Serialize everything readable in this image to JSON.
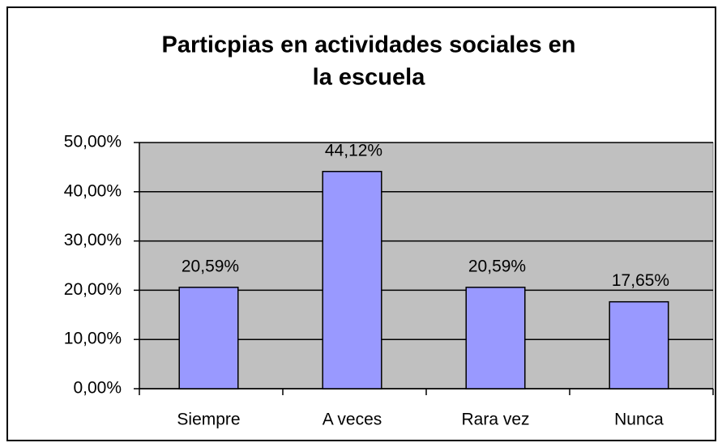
{
  "chart_data": {
    "type": "bar",
    "title": [
      "Particpias  en actividades sociales en",
      "la escuela"
    ],
    "categories": [
      "Siempre",
      "A  veces",
      "Rara  vez",
      "Nunca"
    ],
    "values": [
      20.59,
      44.12,
      20.59,
      17.65
    ],
    "value_labels": [
      "20,59%",
      "44,12%",
      "20,59%",
      "17,65%"
    ],
    "color": "#9999ff",
    "ylim": [
      0,
      50
    ],
    "yticks": [
      {
        "value": 0,
        "label": "0,00%"
      },
      {
        "value": 10,
        "label": "10,00%"
      },
      {
        "value": 20,
        "label": "20,00%"
      },
      {
        "value": 30,
        "label": "30,00%"
      },
      {
        "value": 40,
        "label": "40,00%"
      },
      {
        "value": 50,
        "label": "50,00%"
      }
    ],
    "grid": true
  }
}
